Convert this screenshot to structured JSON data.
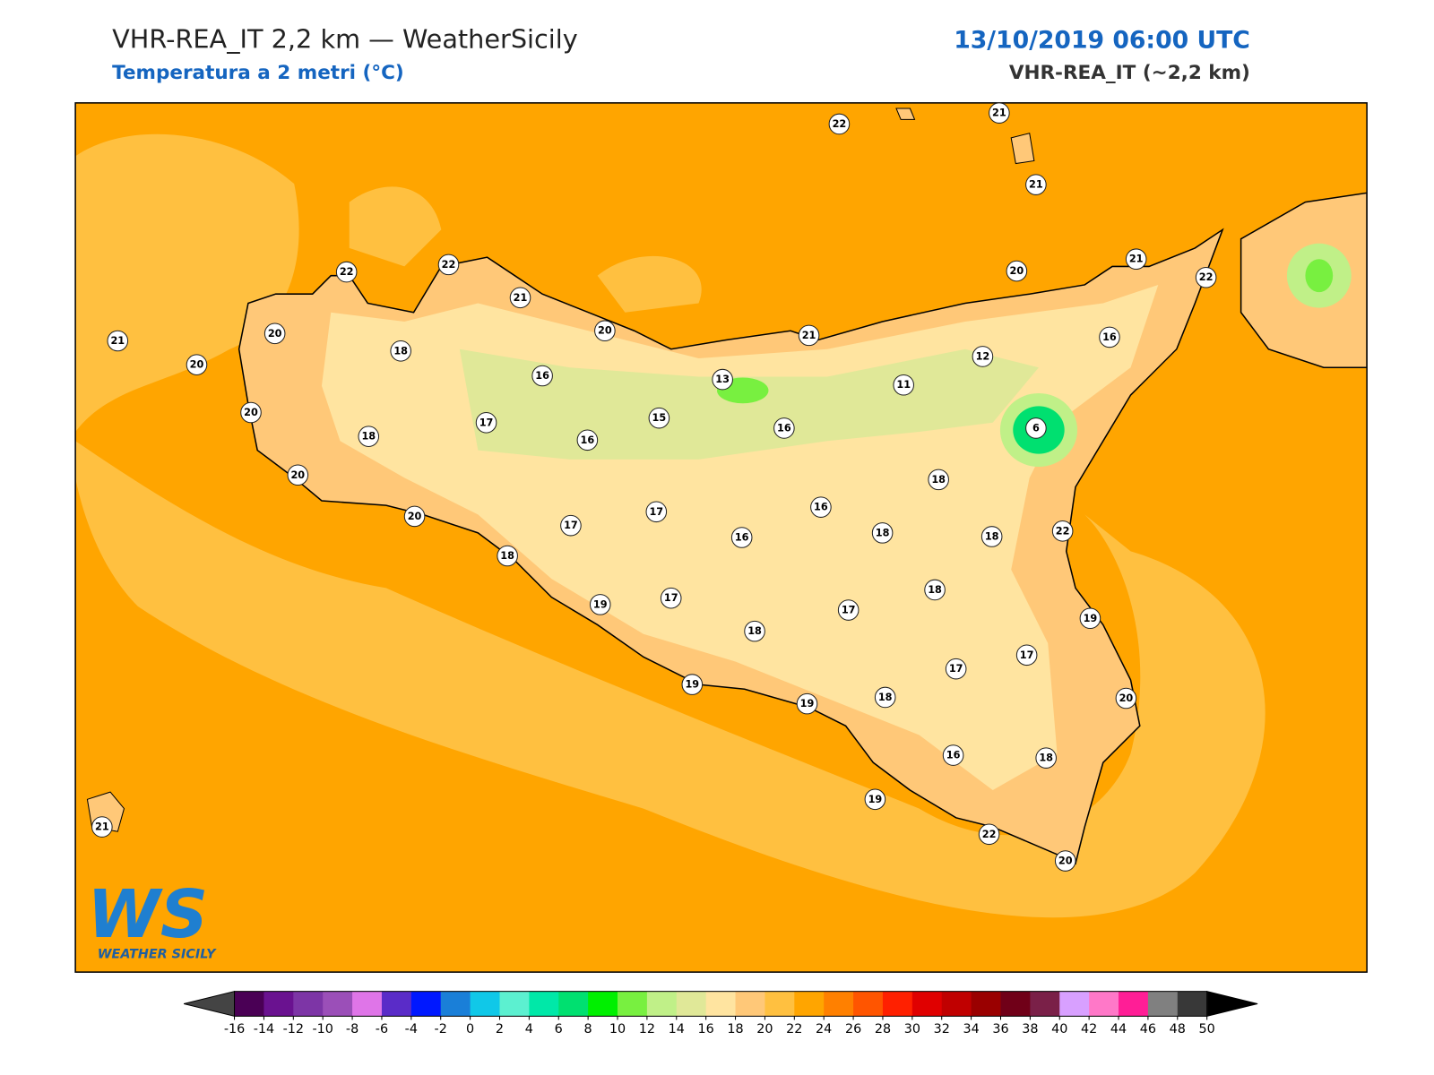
{
  "header": {
    "title": "VHR-REA_IT 2,2 km — WeatherSicily",
    "subtitle": "Temperatura a 2 metri (°C)",
    "datetime": "13/10/2019 06:00 UTC",
    "model": "VHR-REA_IT (~2,2 km)"
  },
  "logo": {
    "mark": "WS",
    "name": "WEATHER SICILY"
  },
  "stations": [
    22,
    21,
    21,
    22,
    22,
    21,
    20,
    21,
    20,
    21,
    22,
    16,
    21,
    20,
    20,
    18,
    16,
    13,
    12,
    11,
    20,
    18,
    17,
    16,
    15,
    16,
    6,
    20,
    18,
    20,
    17,
    16,
    17,
    16,
    18,
    18,
    22,
    18,
    18,
    19,
    17,
    17,
    18,
    19,
    17,
    17,
    19,
    19,
    18,
    20,
    16,
    18,
    19,
    22,
    20,
    21
  ],
  "colorbar": {
    "ticks": [
      -16,
      -14,
      -12,
      -10,
      -8,
      -6,
      -4,
      -2,
      0,
      2,
      4,
      6,
      8,
      10,
      12,
      14,
      16,
      18,
      20,
      22,
      24,
      26,
      28,
      30,
      32,
      34,
      36,
      38,
      40,
      42,
      44,
      46,
      48,
      50
    ],
    "colors": [
      "#4a0055",
      "#6a1290",
      "#7d35a6",
      "#9b4fb8",
      "#df75e8",
      "#5a2cc8",
      "#0018ff",
      "#1a7fd8",
      "#10c8e8",
      "#5cf0d0",
      "#00e8a8",
      "#00e070",
      "#00f000",
      "#78f040",
      "#c0f088",
      "#e0e898",
      "#ffe4a0",
      "#ffc878",
      "#ffc040",
      "#ffa500",
      "#ff8000",
      "#ff5500",
      "#ff2000",
      "#e00000",
      "#c00000",
      "#9a0000",
      "#700018",
      "#7a2048",
      "#d8a0ff",
      "#ff78c8",
      "#ff1e96",
      "#808080",
      "#383838"
    ],
    "under_color": "#444444",
    "over_color": "#000000"
  }
}
